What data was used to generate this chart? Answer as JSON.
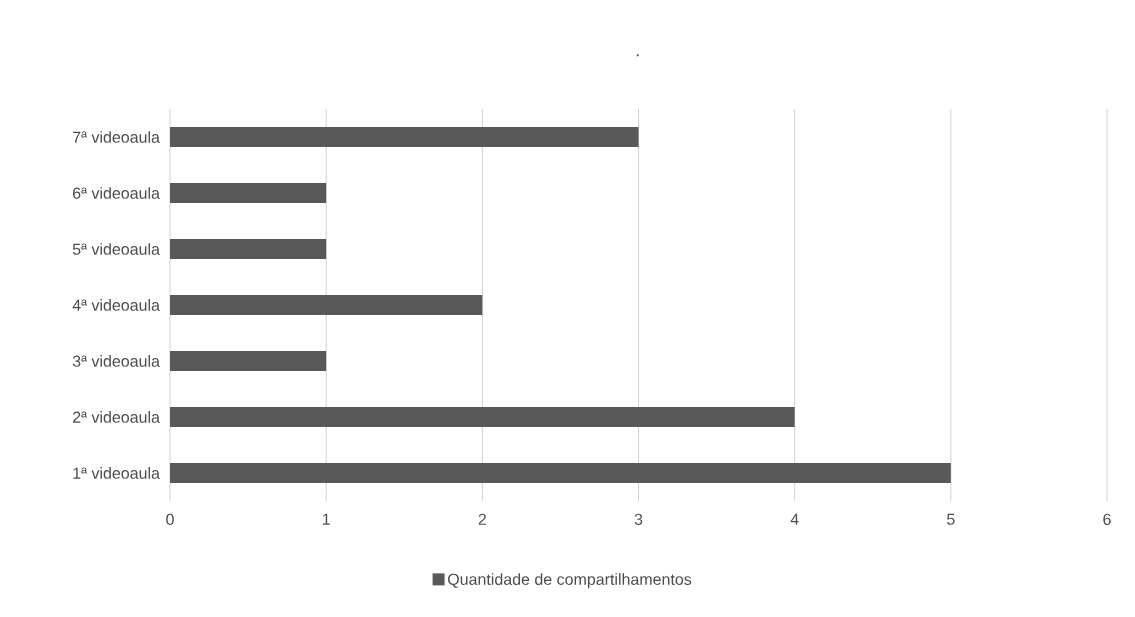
{
  "chart_data": {
    "type": "bar",
    "orientation": "horizontal",
    "title": ".",
    "categories": [
      "7ª videoaula",
      "6ª videoaula",
      "5ª videoaula",
      "4ª videoaula",
      "3ª videoaula",
      "2ª videoaula",
      "1ª videoaula"
    ],
    "series": [
      {
        "name": "Quantidade de compartilhamentos",
        "color": "#595959",
        "values": [
          3,
          1,
          1,
          2,
          1,
          4,
          5
        ]
      }
    ],
    "xlim": [
      0,
      6
    ],
    "xticks": [
      0,
      1,
      2,
      3,
      4,
      5,
      6
    ],
    "grid": "x",
    "legend": "bottom"
  }
}
